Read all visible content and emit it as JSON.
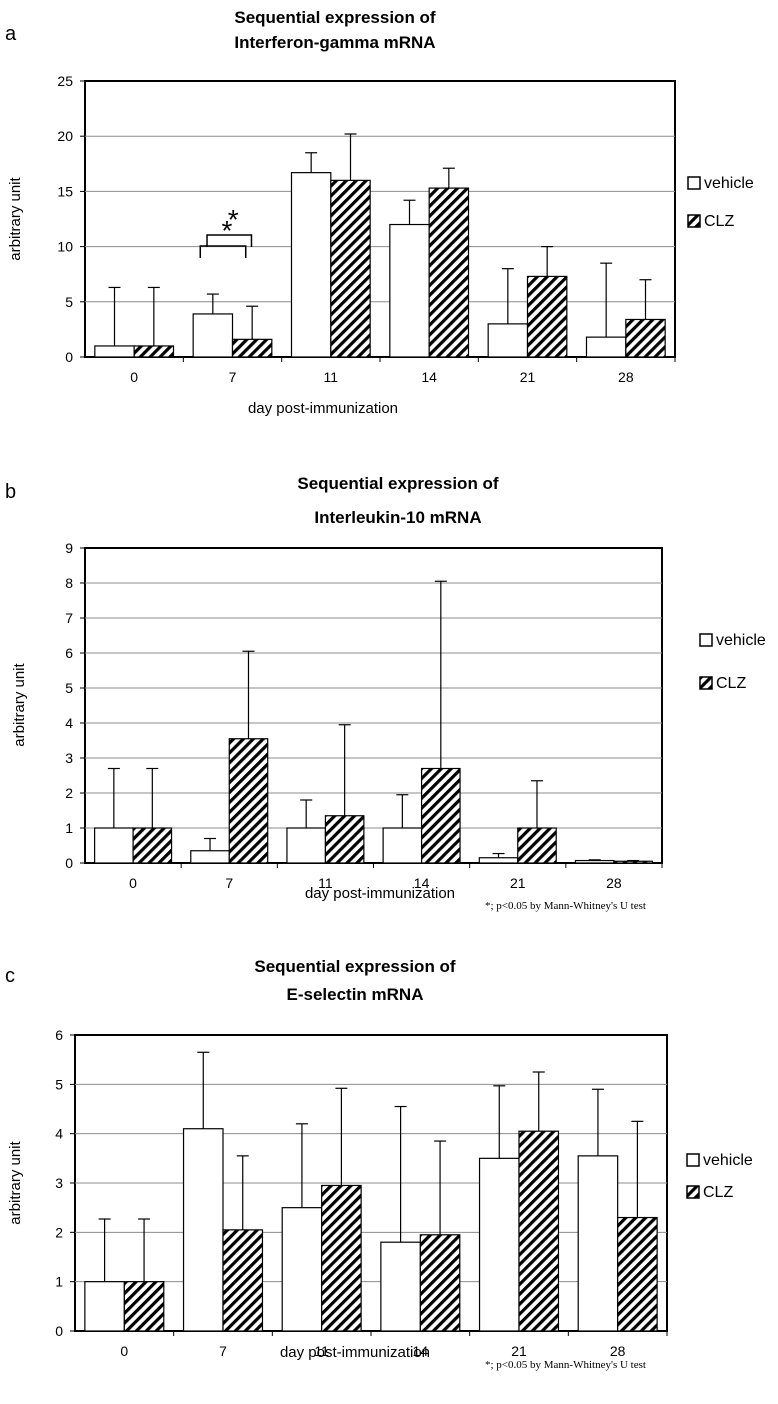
{
  "chart_data": [
    {
      "panel": "a",
      "type": "bar",
      "title": [
        "Sequential expression of",
        "Interferon-gamma mRNA"
      ],
      "xlabel": "day post-immunization",
      "ylabel": "arbitrary unit",
      "categories": [
        "0",
        "7",
        "11",
        "14",
        "21",
        "28"
      ],
      "ylim": [
        0,
        25
      ],
      "yticks": [
        0,
        5,
        10,
        15,
        20,
        25
      ],
      "grid": true,
      "legend_position": "right",
      "series": [
        {
          "name": "vehicle",
          "pattern": "open",
          "values": [
            1.0,
            3.9,
            16.7,
            12.0,
            3.0,
            1.8
          ],
          "err": [
            5.3,
            1.8,
            1.8,
            2.2,
            5.0,
            6.7
          ]
        },
        {
          "name": "CLZ",
          "pattern": "hatched",
          "values": [
            1.0,
            1.6,
            16.0,
            15.3,
            7.3,
            3.4
          ],
          "err": [
            5.3,
            3.0,
            4.2,
            1.8,
            2.7,
            3.6
          ]
        }
      ],
      "significance": []
    },
    {
      "panel": "b",
      "type": "bar",
      "title": [
        "Sequential expression of",
        "Interleukin-10 mRNA"
      ],
      "xlabel": "day post-immunization",
      "ylabel": "arbitrary unit",
      "categories": [
        "0",
        "7",
        "11",
        "14",
        "21",
        "28"
      ],
      "ylim": [
        0,
        9
      ],
      "yticks": [
        0,
        1,
        2,
        3,
        4,
        5,
        6,
        7,
        8,
        9
      ],
      "grid": true,
      "legend_position": "right",
      "series": [
        {
          "name": "vehicle",
          "pattern": "open",
          "values": [
            1.0,
            0.35,
            1.0,
            1.0,
            0.15,
            0.07
          ],
          "err": [
            1.7,
            0.35,
            0.8,
            0.95,
            0.12,
            0.02
          ]
        },
        {
          "name": "CLZ",
          "pattern": "hatched",
          "values": [
            1.0,
            3.55,
            1.35,
            2.7,
            1.0,
            0.05
          ],
          "err": [
            1.7,
            2.5,
            2.6,
            5.35,
            1.35,
            0.02
          ]
        }
      ],
      "significance": [
        {
          "category": "7",
          "label": "*"
        }
      ],
      "note": "*; p<0.05 by Mann-Whitney's U test"
    },
    {
      "panel": "c",
      "type": "bar",
      "title": [
        "Sequential expression of",
        "E-selectin mRNA"
      ],
      "xlabel": "day post-immunization",
      "ylabel": "arbitrary unit",
      "categories": [
        "0",
        "7",
        "11",
        "14",
        "21",
        "28"
      ],
      "ylim": [
        0,
        6
      ],
      "yticks": [
        0,
        1,
        2,
        3,
        4,
        5,
        6
      ],
      "grid": true,
      "legend_position": "right",
      "series": [
        {
          "name": "vehicle",
          "pattern": "open",
          "values": [
            1.0,
            4.1,
            2.5,
            1.8,
            3.5,
            3.55
          ],
          "err": [
            1.27,
            1.55,
            1.7,
            2.75,
            1.47,
            1.35
          ]
        },
        {
          "name": "CLZ",
          "pattern": "hatched",
          "values": [
            1.0,
            2.05,
            2.95,
            1.95,
            4.05,
            2.3
          ],
          "err": [
            1.27,
            1.5,
            1.97,
            1.9,
            1.2,
            1.95
          ]
        }
      ],
      "significance": [
        {
          "category": "7",
          "label": "*"
        }
      ],
      "note": "*; p<0.05 by Mann-Whitney's U test"
    }
  ]
}
